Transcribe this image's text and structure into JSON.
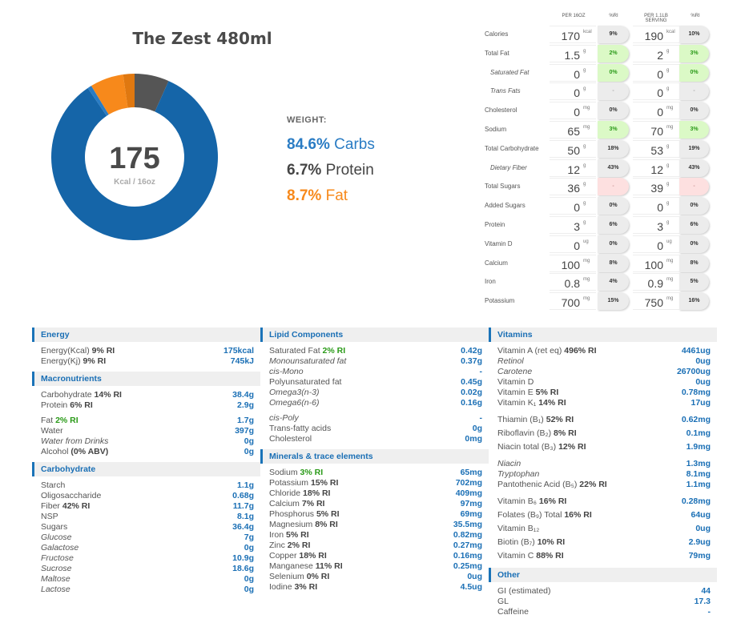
{
  "title": "The Zest 480ml",
  "donut": {
    "center_value": "175",
    "center_label": "Kcal / 16oz",
    "segments": [
      {
        "name": "Protein",
        "percent": 6.7,
        "color": "#555555"
      },
      {
        "name": "Carbs",
        "percent": 83.8,
        "color": "#1565a8"
      },
      {
        "name": "Carbs (sugars)",
        "percent": 0.8,
        "color": "#2a7cc4"
      },
      {
        "name": "Fat",
        "percent": 6.5,
        "color": "#f7891b"
      },
      {
        "name": "Fat (saturated)",
        "percent": 2.2,
        "color": "#e07810"
      }
    ]
  },
  "legend": {
    "weight_label": "WEIGHT:",
    "items": [
      {
        "pct": "84.6%",
        "name": "Carbs",
        "color": "#2a7cc4"
      },
      {
        "pct": "6.7%",
        "name": "Protein",
        "color": "#444444"
      },
      {
        "pct": "8.7%",
        "name": "Fat",
        "color": "#f7891b"
      }
    ]
  },
  "facts": {
    "headers": [
      "PER 16OZ",
      "%RI",
      "PER 1.1LB SERVING",
      "%RI"
    ],
    "rows": [
      {
        "label": "Calories",
        "italic": false,
        "v1": "170",
        "u1": "kcal",
        "ri1": "9%",
        "v2": "190",
        "u2": "kcal",
        "ri2": "10%",
        "status": "gray"
      },
      {
        "label": "Total Fat",
        "italic": false,
        "v1": "1.5",
        "u1": "g",
        "ri1": "2%",
        "v2": "2",
        "u2": "g",
        "ri2": "3%",
        "status": "green"
      },
      {
        "label": "Saturated Fat",
        "italic": true,
        "v1": "0",
        "u1": "g",
        "ri1": "0%",
        "v2": "0",
        "u2": "g",
        "ri2": "0%",
        "status": "green"
      },
      {
        "label": "Trans Fats",
        "italic": true,
        "v1": "0",
        "u1": "g",
        "ri1": "-",
        "v2": "0",
        "u2": "g",
        "ri2": "-",
        "status": "none"
      },
      {
        "label": "Cholesterol",
        "italic": false,
        "v1": "0",
        "u1": "mg",
        "ri1": "0%",
        "v2": "0",
        "u2": "mg",
        "ri2": "0%",
        "status": "gray"
      },
      {
        "label": "Sodium",
        "italic": false,
        "v1": "65",
        "u1": "mg",
        "ri1": "3%",
        "v2": "70",
        "u2": "mg",
        "ri2": "3%",
        "status": "green"
      },
      {
        "label": "Total Carbohydrate",
        "italic": false,
        "v1": "50",
        "u1": "g",
        "ri1": "18%",
        "v2": "53",
        "u2": "g",
        "ri2": "19%",
        "status": "gray"
      },
      {
        "label": "Dietary Fiber",
        "italic": true,
        "v1": "12",
        "u1": "g",
        "ri1": "43%",
        "v2": "12",
        "u2": "g",
        "ri2": "43%",
        "status": "gray"
      },
      {
        "label": "Total Sugars",
        "italic": false,
        "v1": "36",
        "u1": "g",
        "ri1": "-",
        "v2": "39",
        "u2": "g",
        "ri2": "-",
        "status": "pink"
      },
      {
        "label": "Added Sugars",
        "italic": false,
        "v1": "0",
        "u1": "g",
        "ri1": "0%",
        "v2": "0",
        "u2": "g",
        "ri2": "0%",
        "status": "gray"
      },
      {
        "label": "Protein",
        "italic": false,
        "v1": "3",
        "u1": "g",
        "ri1": "6%",
        "v2": "3",
        "u2": "g",
        "ri2": "6%",
        "status": "gray"
      },
      {
        "label": "Vitamin D",
        "italic": false,
        "v1": "0",
        "u1": "ug",
        "ri1": "0%",
        "v2": "0",
        "u2": "ug",
        "ri2": "0%",
        "status": "gray"
      },
      {
        "label": "Calcium",
        "italic": false,
        "v1": "100",
        "u1": "mg",
        "ri1": "8%",
        "v2": "100",
        "u2": "mg",
        "ri2": "8%",
        "status": "gray"
      },
      {
        "label": "Iron",
        "italic": false,
        "v1": "0.8",
        "u1": "mg",
        "ri1": "4%",
        "v2": "0.9",
        "u2": "mg",
        "ri2": "5%",
        "status": "gray"
      },
      {
        "label": "Potassium",
        "italic": false,
        "v1": "700",
        "u1": "mg",
        "ri1": "15%",
        "v2": "750",
        "u2": "mg",
        "ri2": "16%",
        "status": "gray"
      }
    ]
  },
  "columns": [
    [
      {
        "title": "Energy",
        "groups": [
          [
            {
              "label": "Energy(Kcal)",
              "ri": "9% RI",
              "value": "175kcal"
            },
            {
              "label": "Energy(Kj)",
              "ri": "9% RI",
              "value": "745kJ"
            }
          ]
        ]
      },
      {
        "title": "Macronutrients",
        "groups": [
          [
            {
              "label": "Carbohydrate",
              "ri": "14% RI",
              "value": "38.4g"
            },
            {
              "label": "Protein",
              "ri": "6% RI",
              "value": "2.9g"
            }
          ],
          [
            {
              "label": "Fat",
              "ri": "2% RI",
              "riColor": "green",
              "value": "1.7g"
            },
            {
              "label": "Water",
              "value": "397g"
            },
            {
              "label": "Water from Drinks",
              "italic": true,
              "value": "0g"
            },
            {
              "label": "Alcohol",
              "ri": "(0% ABV)",
              "value": "0g"
            }
          ]
        ]
      },
      {
        "title": "Carbohydrate",
        "groups": [
          [
            {
              "label": "Starch",
              "value": "1.1g"
            },
            {
              "label": "Oligosaccharide",
              "value": "0.68g"
            },
            {
              "label": "Fiber",
              "ri": "42% RI",
              "value": "11.7g"
            },
            {
              "label": "NSP",
              "value": "8.1g"
            },
            {
              "label": "Sugars",
              "value": "36.4g"
            },
            {
              "label": "Glucose",
              "italic": true,
              "value": "7g"
            },
            {
              "label": "Galactose",
              "italic": true,
              "value": "0g"
            },
            {
              "label": "Fructose",
              "italic": true,
              "value": "10.9g"
            },
            {
              "label": "Sucrose",
              "italic": true,
              "value": "18.6g"
            },
            {
              "label": "Maltose",
              "italic": true,
              "value": "0g"
            },
            {
              "label": "Lactose",
              "italic": true,
              "value": "0g"
            }
          ]
        ]
      }
    ],
    [
      {
        "title": "Lipid Components",
        "groups": [
          [
            {
              "label": "Saturated Fat",
              "ri": "2% RI",
              "riColor": "green",
              "value": "0.42g"
            },
            {
              "label": "Monounsaturated fat",
              "italic": true,
              "value": "0.37g"
            },
            {
              "label": "cis-Mono",
              "italic": true,
              "value": "-"
            },
            {
              "label": "Polyunsaturated fat",
              "value": "0.45g"
            },
            {
              "label": "Omega3(n-3)",
              "italic": true,
              "value": "0.02g"
            },
            {
              "label": "Omega6(n-6)",
              "italic": true,
              "value": "0.16g"
            }
          ],
          [
            {
              "label": "cis-Poly",
              "italic": true,
              "value": "-"
            },
            {
              "label": "Trans-fatty acids",
              "value": "0g"
            },
            {
              "label": "Cholesterol",
              "value": "0mg"
            }
          ]
        ]
      },
      {
        "title": "Minerals & trace elements",
        "groups": [
          [
            {
              "label": "Sodium",
              "ri": "3% RI",
              "riColor": "green",
              "value": "65mg"
            },
            {
              "label": "Potassium",
              "ri": "15% RI",
              "value": "702mg"
            },
            {
              "label": "Chloride",
              "ri": "18% RI",
              "value": "409mg"
            },
            {
              "label": "Calcium",
              "ri": "7% RI",
              "value": "97mg"
            },
            {
              "label": "Phosphorus",
              "ri": "5% RI",
              "value": "69mg"
            },
            {
              "label": "Magnesium",
              "ri": "8% RI",
              "value": "35.5mg"
            },
            {
              "label": "Iron",
              "ri": "5% RI",
              "value": "0.82mg"
            },
            {
              "label": "Zinc",
              "ri": "2% RI",
              "value": "0.27mg"
            },
            {
              "label": "Copper",
              "ri": "18% RI",
              "value": "0.16mg"
            },
            {
              "label": "Manganese",
              "ri": "11% RI",
              "value": "0.25mg"
            },
            {
              "label": "Selenium",
              "ri": "0% RI",
              "value": "0ug"
            },
            {
              "label": "Iodine",
              "ri": "3% RI",
              "value": "4.5ug"
            }
          ]
        ]
      }
    ],
    [
      {
        "title": "Vitamins",
        "groups": [
          [
            {
              "label": "Vitamin A (ret eq)",
              "ri": "496% RI",
              "value": "4461ug"
            },
            {
              "label": "Retinol",
              "italic": true,
              "value": "0ug"
            },
            {
              "label": "Carotene",
              "italic": true,
              "value": "26700ug"
            },
            {
              "label": "Vitamin D",
              "value": "0ug"
            },
            {
              "label": "Vitamin E",
              "ri": "5% RI",
              "value": "0.78mg"
            },
            {
              "label": "Vitamin K₁",
              "ri": "14% RI",
              "value": "17ug"
            }
          ],
          [
            {
              "label": "Thiamin (B₁)",
              "ri": "52% RI",
              "value": "0.62mg"
            },
            {
              "label": "Riboflavin (B₂)",
              "ri": "8% RI",
              "value": "0.1mg"
            },
            {
              "label": "Niacin total (B₃)",
              "ri": "12% RI",
              "value": "1.9mg"
            }
          ],
          [
            {
              "label": "Niacin",
              "italic": true,
              "value": "1.3mg"
            },
            {
              "label": "Tryptophan",
              "italic": true,
              "value": "8.1mg"
            },
            {
              "label": "Pantothenic Acid (B₅)",
              "ri": "22% RI",
              "value": "1.1mg"
            }
          ],
          [
            {
              "label": "Vitamin B₆",
              "ri": "16% RI",
              "value": "0.28mg"
            },
            {
              "label": "Folates (B₉) Total",
              "ri": "16% RI",
              "value": "64ug"
            },
            {
              "label": "Vitamin B₁₂",
              "value": "0ug"
            },
            {
              "label": "Biotin (B₇)",
              "ri": "10% RI",
              "value": "2.9ug"
            },
            {
              "label": "Vitamin C",
              "ri": "88% RI",
              "value": "79mg"
            }
          ]
        ]
      },
      {
        "title": "Other",
        "groups": [
          [
            {
              "label": "GI (estimated)",
              "value": "44"
            },
            {
              "label": "GL",
              "value": "17.3"
            },
            {
              "label": "Caffeine",
              "value": "-"
            }
          ]
        ]
      }
    ]
  ]
}
